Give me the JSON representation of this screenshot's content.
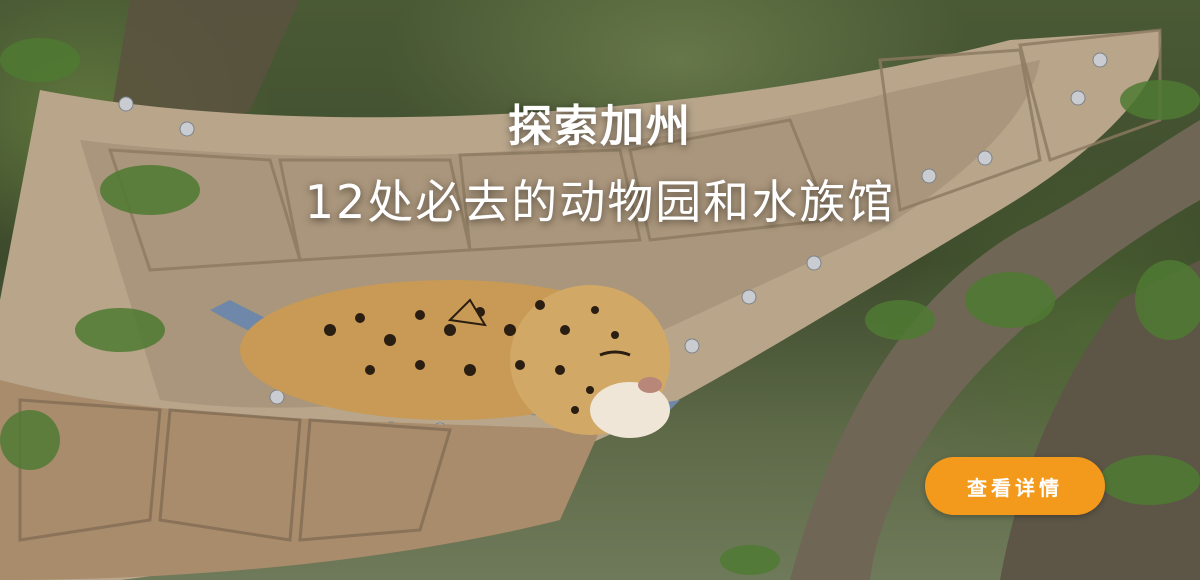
{
  "hero": {
    "title_line1": "探索加州",
    "title_line2": "12处必去的动物园和水族馆",
    "cta_label": "查看详情",
    "image": "jaguar-sleeping-in-hammock",
    "accent_color": "#f39a1d"
  }
}
